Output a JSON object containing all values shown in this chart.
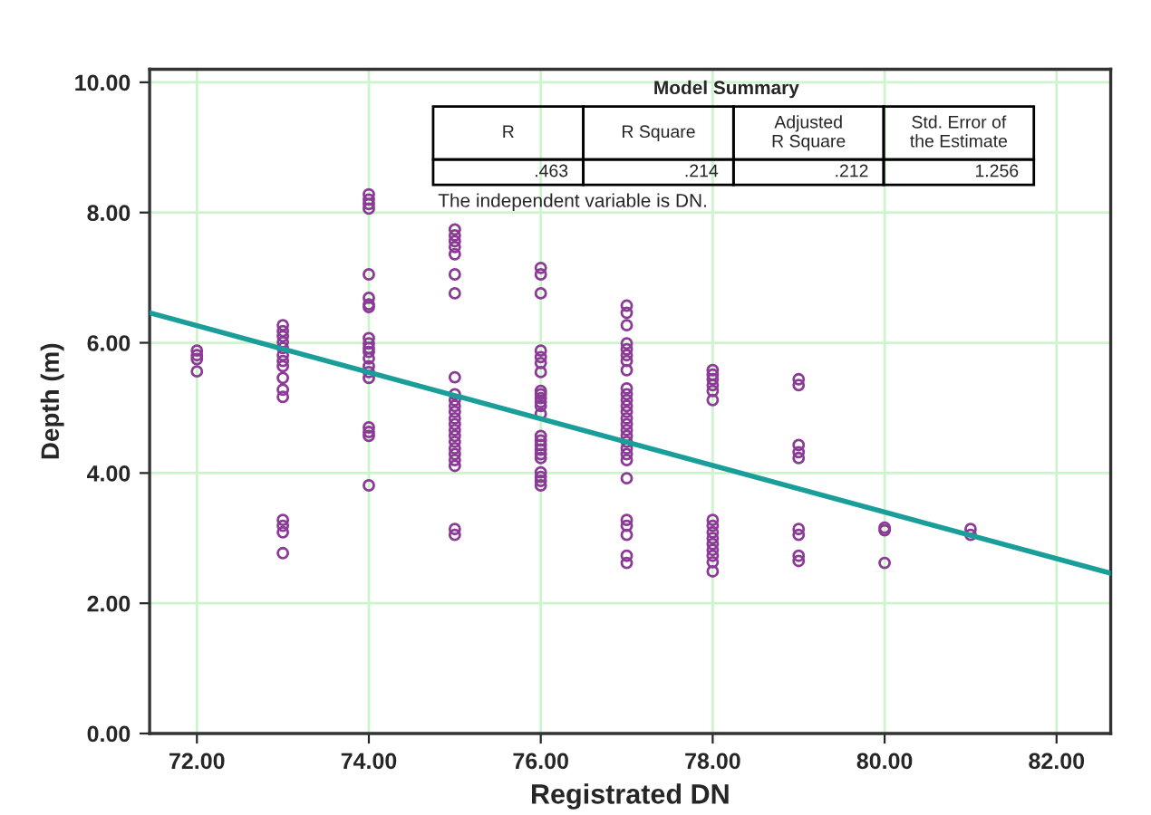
{
  "chart_data": {
    "type": "scatter",
    "xlabel": "Registrated DN",
    "ylabel": "Depth (m)",
    "annotations": [
      "Model Summary",
      "R",
      "R Square",
      "Adjusted\nR Square",
      "Std. Error of\nthe Estimate",
      ".463",
      ".214",
      ".212",
      "1.256",
      "The independent variable is DN."
    ],
    "series": [
      {
        "color": "#8b3a96",
        "marker": "circle",
        "x": [
          72,
          72,
          72,
          72,
          73,
          73,
          73,
          73,
          73,
          73,
          73,
          73,
          73,
          73,
          73,
          73,
          73,
          73,
          73,
          74,
          74,
          74,
          74,
          74,
          74,
          74,
          74,
          74,
          74,
          74,
          74,
          74,
          74,
          74,
          74,
          74,
          74,
          74,
          74,
          75,
          75,
          75,
          75,
          75,
          75,
          75,
          75,
          75,
          75,
          75,
          75,
          75,
          75,
          75,
          75,
          75,
          75,
          75,
          75,
          75,
          75,
          75,
          76,
          76,
          76,
          76,
          76,
          76,
          76,
          76,
          76,
          76,
          76,
          76,
          76,
          76,
          76,
          76,
          76,
          76,
          76,
          76,
          76,
          76,
          76,
          77,
          77,
          77,
          77,
          77,
          77,
          77,
          77,
          77,
          77,
          77,
          77,
          77,
          77,
          77,
          77,
          77,
          77,
          77,
          77,
          77,
          77,
          77,
          77,
          77,
          77,
          77,
          78,
          78,
          78,
          78,
          78,
          78,
          78,
          78,
          78,
          78,
          78,
          78,
          78,
          78,
          78,
          79,
          79,
          79,
          79,
          79,
          79,
          79,
          79,
          79,
          80,
          80,
          80,
          81,
          81
        ],
        "values": [
          5.88,
          5.81,
          5.75,
          5.56,
          6.27,
          6.18,
          6.1,
          6.01,
          5.92,
          5.81,
          5.72,
          5.64,
          5.46,
          5.28,
          5.17,
          3.28,
          3.19,
          3.09,
          2.77,
          8.28,
          8.2,
          8.13,
          8.06,
          7.05,
          6.69,
          6.59,
          6.55,
          6.07,
          5.99,
          5.92,
          5.86,
          5.76,
          5.64,
          5.55,
          5.46,
          4.7,
          4.63,
          4.57,
          3.81,
          7.74,
          7.65,
          7.56,
          7.47,
          7.36,
          7.05,
          6.76,
          5.47,
          5.21,
          5.12,
          5.03,
          4.94,
          4.84,
          4.75,
          4.66,
          4.57,
          4.48,
          4.38,
          4.29,
          4.2,
          4.11,
          3.14,
          3.05,
          7.15,
          7.05,
          6.76,
          5.88,
          5.78,
          5.69,
          5.55,
          5.26,
          5.21,
          5.15,
          5.09,
          5.03,
          4.91,
          4.57,
          4.5,
          4.43,
          4.36,
          4.29,
          4.23,
          4.01,
          3.94,
          3.88,
          3.81,
          6.57,
          6.46,
          6.27,
          5.99,
          5.9,
          5.81,
          5.72,
          5.58,
          5.3,
          5.21,
          5.12,
          5.03,
          4.94,
          4.84,
          4.75,
          4.66,
          4.57,
          4.48,
          4.38,
          4.29,
          4.2,
          3.92,
          3.28,
          3.19,
          3.05,
          2.73,
          2.62,
          5.58,
          5.51,
          5.44,
          5.35,
          5.26,
          5.12,
          3.28,
          3.19,
          3.09,
          3.0,
          2.91,
          2.82,
          2.73,
          2.63,
          2.49,
          5.44,
          5.35,
          4.43,
          4.32,
          4.23,
          3.14,
          3.05,
          2.73,
          2.65,
          3.16,
          3.12,
          2.62,
          3.14,
          3.05
        ]
      },
      {
        "type": "line",
        "color": "#1a9e9a",
        "x": [
          71.45,
          82.63
        ],
        "values": [
          6.46,
          2.46
        ]
      }
    ],
    "xlim": [
      71.45,
      82.63
    ],
    "ylim": [
      0,
      10.2
    ],
    "xticks": [
      {
        "value": 72,
        "label": "72.00"
      },
      {
        "value": 74,
        "label": "74.00"
      },
      {
        "value": 76,
        "label": "76.00"
      },
      {
        "value": 78,
        "label": "78.00"
      },
      {
        "value": 80,
        "label": "80.00"
      },
      {
        "value": 82,
        "label": "82.00"
      }
    ],
    "yticks": [
      {
        "value": 0,
        "label": "0.00"
      },
      {
        "value": 2,
        "label": "2.00"
      },
      {
        "value": 4,
        "label": "4.00"
      },
      {
        "value": 6,
        "label": "6.00"
      },
      {
        "value": 8,
        "label": "8.00"
      },
      {
        "value": 10,
        "label": "10.00"
      }
    ],
    "grid": true
  }
}
